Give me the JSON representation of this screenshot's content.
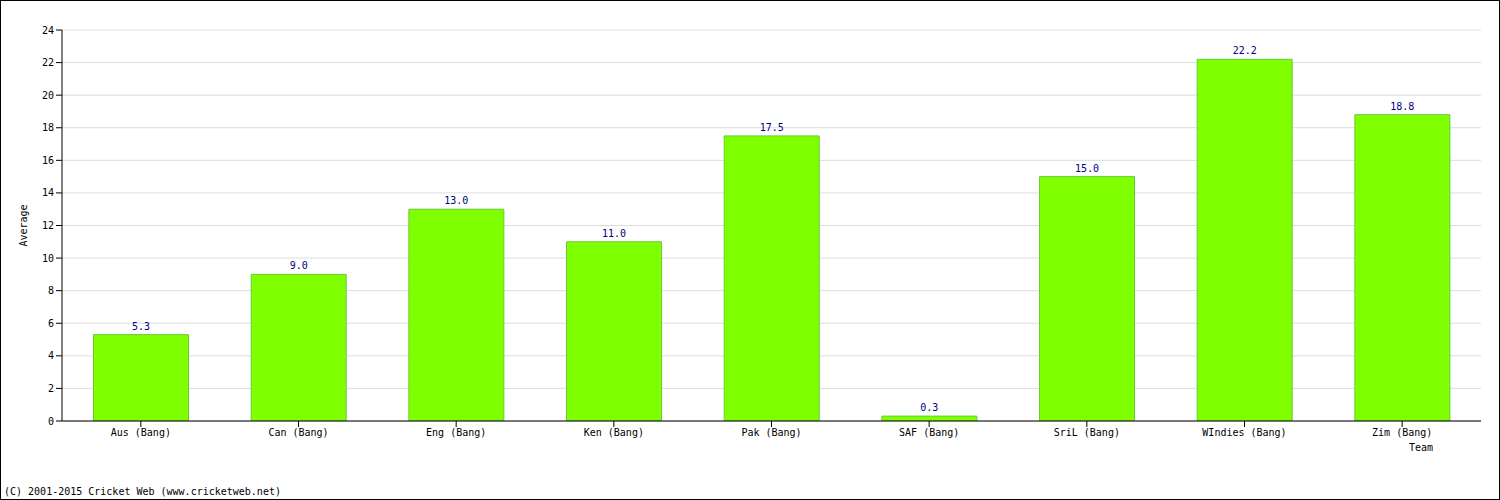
{
  "chart_data": {
    "type": "bar",
    "categories": [
      "Aus (Bang)",
      "Can (Bang)",
      "Eng (Bang)",
      "Ken (Bang)",
      "Pak (Bang)",
      "SAF (Bang)",
      "SriL (Bang)",
      "WIndies (Bang)",
      "Zim (Bang)"
    ],
    "values": [
      5.3,
      9.0,
      13.0,
      11.0,
      17.5,
      0.3,
      15.0,
      22.2,
      18.8
    ],
    "value_labels": [
      "5.3",
      "9.0",
      "13.0",
      "11.0",
      "17.5",
      "0.3",
      "15.0",
      "22.2",
      "18.8"
    ],
    "color": "#80ff00",
    "x_label": "Team",
    "y_label": "Average",
    "annotation": "(C) 2001-2015 Cricket Web (www.cricketweb.net)",
    "ylim": [
      0,
      24
    ],
    "yticks": [
      0,
      2,
      4,
      6,
      8,
      10,
      12,
      14,
      16,
      18,
      20,
      22,
      24
    ],
    "grid": true,
    "data_labels": true
  }
}
